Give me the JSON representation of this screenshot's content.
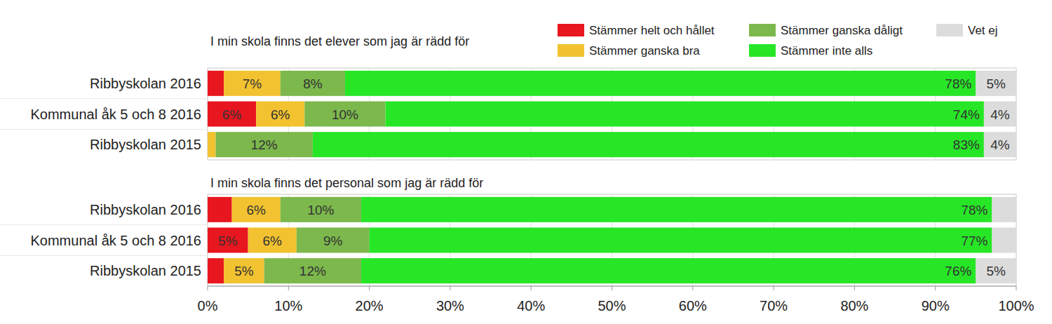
{
  "chart_data": [
    {
      "type": "bar",
      "orientation": "horizontal",
      "stacked": true,
      "data_labels": true,
      "grid": true,
      "legend": "top-right",
      "tick_labels": false,
      "title": "I min skola finns det elever som jag är rädd för",
      "categories": [
        "Ribbyskolan 2016",
        "Kommunal åk 5 och 8 2016",
        "Ribbyskolan 2015"
      ],
      "xlim": [
        0,
        100
      ],
      "xticks": [
        {
          "value": 0,
          "label": "0%"
        },
        {
          "value": 10,
          "label": "10%"
        },
        {
          "value": 20,
          "label": "20%"
        },
        {
          "value": 30,
          "label": "30%"
        },
        {
          "value": 40,
          "label": "40%"
        },
        {
          "value": 50,
          "label": "50%"
        },
        {
          "value": 60,
          "label": "60%"
        },
        {
          "value": 70,
          "label": "70%"
        },
        {
          "value": 80,
          "label": "80%"
        },
        {
          "value": 90,
          "label": "90%"
        },
        {
          "value": 100,
          "label": "100%"
        }
      ],
      "series": [
        {
          "name": "Stämmer helt och hållet",
          "color": "#e8161e",
          "values": [
            2,
            6,
            0
          ],
          "value_labels": [
            null,
            "6%",
            null
          ]
        },
        {
          "name": "Stämmer ganska bra",
          "color": "#f2c230",
          "values": [
            7,
            6,
            1
          ],
          "value_labels": [
            "7%",
            "6%",
            null
          ]
        },
        {
          "name": "Stämmer ganska dåligt",
          "color": "#7cb84c",
          "values": [
            8,
            10,
            12
          ],
          "value_labels": [
            "8%",
            "10%",
            "12%"
          ]
        },
        {
          "name": "Stämmer inte alls",
          "color": "#26e626",
          "values": [
            78,
            74,
            83
          ],
          "value_labels": [
            "78%",
            "74%",
            "83%"
          ]
        },
        {
          "name": "Vet ej",
          "color": "#dcdcdc",
          "values": [
            5,
            4,
            4
          ],
          "value_labels": [
            "5%",
            "4%",
            "4%"
          ]
        }
      ]
    },
    {
      "type": "bar",
      "orientation": "horizontal",
      "stacked": true,
      "data_labels": true,
      "grid": true,
      "tick_labels": "x",
      "title": "I min skola finns det personal som jag är rädd för",
      "categories": [
        "Ribbyskolan 2016",
        "Kommunal åk 5 och 8 2016",
        "Ribbyskolan 2015"
      ],
      "xlim": [
        0,
        100
      ],
      "xticks": [
        {
          "value": 0,
          "label": "0%"
        },
        {
          "value": 10,
          "label": "10%"
        },
        {
          "value": 20,
          "label": "20%"
        },
        {
          "value": 30,
          "label": "30%"
        },
        {
          "value": 40,
          "label": "40%"
        },
        {
          "value": 50,
          "label": "50%"
        },
        {
          "value": 60,
          "label": "60%"
        },
        {
          "value": 70,
          "label": "70%"
        },
        {
          "value": 80,
          "label": "80%"
        },
        {
          "value": 90,
          "label": "90%"
        },
        {
          "value": 100,
          "label": "100%"
        }
      ],
      "series": [
        {
          "color": "#e8161e",
          "values": [
            3,
            5,
            2
          ],
          "value_labels": [
            null,
            "5%",
            null
          ]
        },
        {
          "color": "#f2c230",
          "values": [
            6,
            6,
            5
          ],
          "value_labels": [
            "6%",
            "6%",
            "5%"
          ]
        },
        {
          "color": "#7cb84c",
          "values": [
            10,
            9,
            12
          ],
          "value_labels": [
            "10%",
            "9%",
            "12%"
          ]
        },
        {
          "color": "#26e626",
          "values": [
            78,
            77,
            76
          ],
          "value_labels": [
            "78%",
            "77%",
            "76%"
          ]
        },
        {
          "color": "#dcdcdc",
          "values": [
            3,
            3,
            5
          ],
          "value_labels": [
            null,
            null,
            "5%"
          ]
        }
      ]
    }
  ]
}
